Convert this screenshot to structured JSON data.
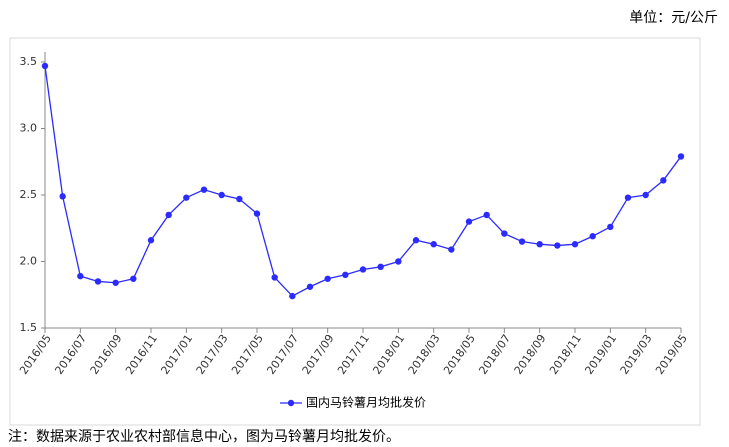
{
  "unit_label": "单位：元/公斤",
  "note": "注：数据来源于农业农村部信息中心，图为马铃薯月均批发价。",
  "chart_data": {
    "type": "line",
    "categories": [
      "2016/05",
      null,
      "2016/07",
      null,
      "2016/09",
      null,
      "2016/11",
      null,
      "2017/01",
      null,
      "2017/03",
      null,
      "2017/05",
      null,
      "2017/07",
      null,
      "2017/09",
      null,
      "2017/11",
      null,
      "2018/01",
      null,
      "2018/03",
      null,
      "2018/05",
      null,
      "2018/07",
      null,
      "2018/09",
      null,
      "2018/11",
      null,
      "2019/01",
      null,
      "2019/03",
      null,
      "2019/05"
    ],
    "series": [
      {
        "name": "国内马铃薯月均批发价",
        "color": "#2b2bff",
        "values": [
          3.47,
          2.49,
          1.89,
          1.85,
          1.84,
          1.87,
          2.16,
          2.35,
          2.48,
          2.54,
          2.5,
          2.47,
          2.36,
          1.88,
          1.74,
          1.81,
          1.87,
          1.9,
          1.94,
          1.96,
          2.0,
          2.16,
          2.13,
          2.09,
          2.3,
          2.35,
          2.21,
          2.15,
          2.13,
          2.12,
          2.13,
          2.19,
          2.26,
          2.48,
          2.5,
          2.61,
          2.79
        ]
      }
    ],
    "ylim": [
      1.5,
      3.5
    ],
    "yticks": [
      1.5,
      {
        "value": 2,
        "label": "2.0"
      },
      2.5,
      {
        "value": 3,
        "label": "3.0"
      },
      3.5
    ],
    "grid": false,
    "legend": "bottom"
  }
}
